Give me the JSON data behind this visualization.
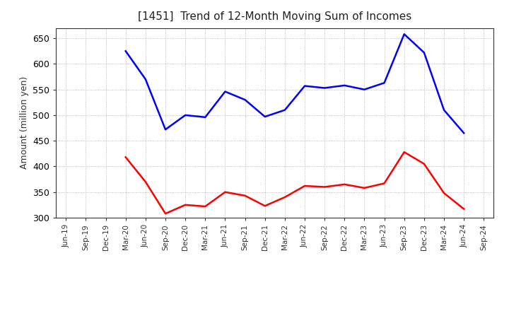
{
  "title": "[1451]  Trend of 12-Month Moving Sum of Incomes",
  "ylabel": "Amount (million yen)",
  "x_labels": [
    "Jun-19",
    "Sep-19",
    "Dec-19",
    "Mar-20",
    "Jun-20",
    "Sep-20",
    "Dec-20",
    "Mar-21",
    "Jun-21",
    "Sep-21",
    "Dec-21",
    "Mar-22",
    "Jun-22",
    "Sep-22",
    "Dec-22",
    "Mar-23",
    "Jun-23",
    "Sep-23",
    "Dec-23",
    "Mar-24",
    "Jun-24",
    "Sep-24"
  ],
  "ordinary_income": [
    null,
    null,
    null,
    625,
    570,
    472,
    500,
    496,
    546,
    530,
    497,
    510,
    557,
    553,
    558,
    550,
    563,
    658,
    622,
    510,
    465,
    null
  ],
  "net_income": [
    null,
    null,
    null,
    418,
    370,
    308,
    325,
    322,
    350,
    343,
    323,
    340,
    362,
    360,
    365,
    358,
    367,
    428,
    405,
    348,
    317,
    null
  ],
  "ylim": [
    300,
    670
  ],
  "yticks": [
    300,
    350,
    400,
    450,
    500,
    550,
    600,
    650
  ],
  "ordinary_color": "#0000FF",
  "net_color": "#FF0000",
  "bg_color": "#FFFFFF",
  "plot_bg_color": "#FFFFFF",
  "grid_color": "#AAAAAA",
  "title_color": "#222222"
}
